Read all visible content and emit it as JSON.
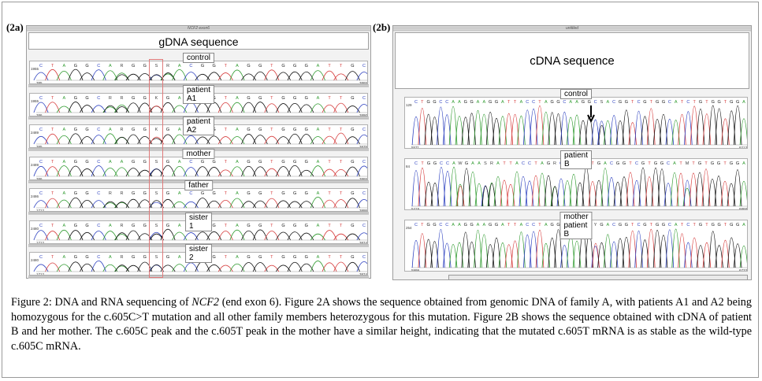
{
  "figure": {
    "panel_a_label": "(2a)",
    "panel_b_label": "(2b)",
    "panel_a_window_title": "NCF2 exon6",
    "panel_b_window_title": "untitled",
    "panel_a_heading": "gDNA sequence",
    "panel_b_heading": "cDNA sequence"
  },
  "gdna_traces": [
    {
      "label": "control",
      "seq": "C T A G G C A R G G S R A C G G T A G G T G G G A T T G C",
      "axis": "1955",
      "start": "385",
      "end": "3865"
    },
    {
      "label": "patient A1",
      "seq": "C T A G G C R R G G K G A C G G T A G G T G G G A T T G C",
      "axis": "1955",
      "start": "386",
      "end": "3890"
    },
    {
      "label": "patient A2",
      "seq": "C T A G G C A R G G K G A C G G T A G G T G G G A T T G C",
      "axis": "2489",
      "start": "385",
      "end": "3875"
    },
    {
      "label": "mother",
      "seq": "C T A G G C A A G G S G A C G G T A G G T G G G A T T G C",
      "axis": "2489",
      "start": "386",
      "end": "3865"
    },
    {
      "label": "father",
      "seq": "C T A G G C R R G G S G A C G G T A G G T G G G A T T G C",
      "axis": "2486",
      "start": "1712",
      "end": "3895"
    },
    {
      "label": "sister 1",
      "seq": "C T A G G C A R G G S G A C G G T A G G T G G G A T T G C",
      "axis": "2480",
      "start": "1712",
      "end": "3874"
    },
    {
      "label": "sister 2",
      "seq": "C T A G G C A R G G S G A C G G T A G G T G G G A T T G C",
      "axis": "2480",
      "start": "1712",
      "end": "3874"
    }
  ],
  "cdna_traces": [
    {
      "label": "control",
      "seq": "C T G G C C A A G G A A G G A T T A C C T A G G C A A G G C S A C G G T C G T G G C A T C T G T G G T G G A",
      "axis": "129",
      "start": "5571",
      "end": "6213"
    },
    {
      "label": "patient B",
      "seq": "C T G G C C A W G A A S R A T T A C C T A G R C A A G G T G A C G G T C G T G G C A T M T G T G G T G G A",
      "axis": "84",
      "start": "5419",
      "end": "6868"
    },
    {
      "label": "mother patient B",
      "seq": "C T G G C C A A G G A A G G A T T A C C T A G G C A A G G Y G A C G G T C G T G G C A T C T G T G G T G G A",
      "axis": "254",
      "start": "5999",
      "end": "6733"
    }
  ],
  "caption": {
    "title_prefix": "Figure 2: DNA and RNA sequencing of ",
    "title_gene": "NCF2",
    "title_suffix": " (end exon 6).",
    "body": " Figure 2A shows the sequence obtained from genomic DNA of family A, with patients A1 and A2 being homozygous for the c.605C>T mutation and all other family members heterozygous for this mutation. Figure 2B shows the sequence obtained with cDNA of patient B and her mother. The c.605C peak and the c.605T peak in the mother have a similar height, indicating that the mutated c.605T mRNA is as stable as the wild-type c.605C mRNA."
  },
  "colors": {
    "A": "#2e9a2e",
    "C": "#2b3fbf",
    "G": "#111111",
    "T": "#d63a3a",
    "highlight": "#e07a7a"
  }
}
